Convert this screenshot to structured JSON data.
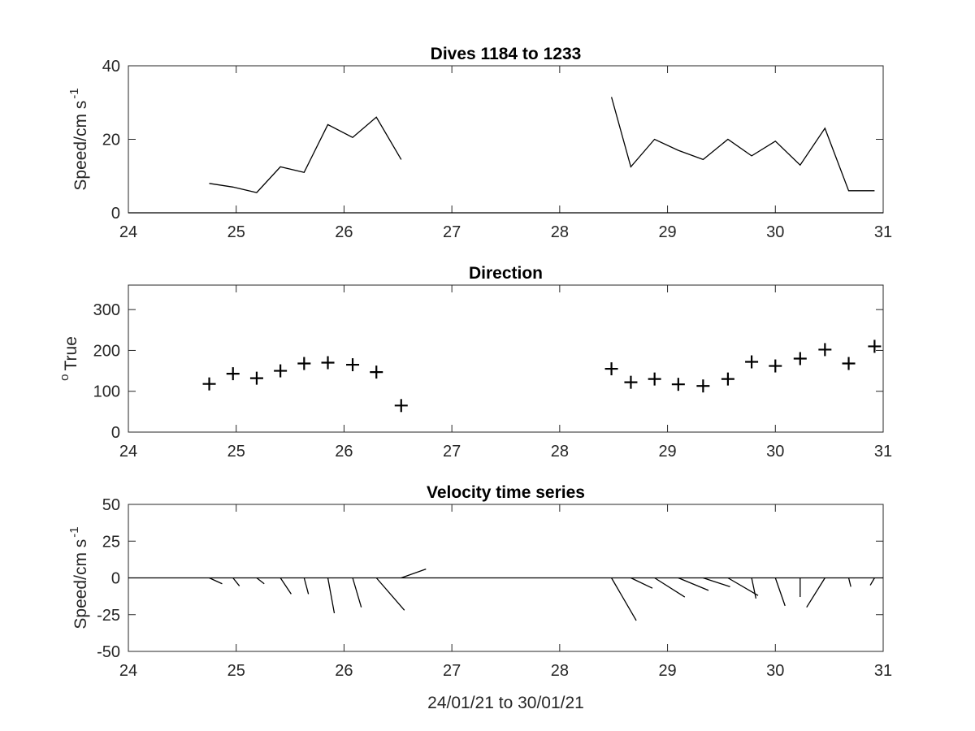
{
  "chart_data": [
    {
      "type": "line",
      "title": "Dives 1184 to 1233",
      "ylabel": "Speed/cm s",
      "ylabel_sup": "-1",
      "xlim": [
        24,
        31
      ],
      "ylim": [
        0,
        40
      ],
      "xticks": [
        24,
        25,
        26,
        27,
        28,
        29,
        30,
        31
      ],
      "yticks": [
        0,
        20,
        40
      ],
      "grid": false,
      "zero_line": true,
      "segments": [
        [
          {
            "x": 24.75,
            "y": 8
          },
          {
            "x": 24.97,
            "y": 7
          },
          {
            "x": 25.19,
            "y": 5.5
          },
          {
            "x": 25.41,
            "y": 12.5
          },
          {
            "x": 25.63,
            "y": 11
          },
          {
            "x": 25.85,
            "y": 24
          },
          {
            "x": 26.08,
            "y": 20.5
          },
          {
            "x": 26.3,
            "y": 26
          },
          {
            "x": 26.53,
            "y": 14.5
          }
        ],
        [
          {
            "x": 28.48,
            "y": 31.5
          },
          {
            "x": 28.66,
            "y": 12.5
          },
          {
            "x": 28.88,
            "y": 20
          },
          {
            "x": 29.1,
            "y": 17
          },
          {
            "x": 29.33,
            "y": 14.5
          },
          {
            "x": 29.56,
            "y": 20
          },
          {
            "x": 29.78,
            "y": 15.5
          },
          {
            "x": 30.0,
            "y": 19.5
          },
          {
            "x": 30.23,
            "y": 13
          },
          {
            "x": 30.46,
            "y": 23
          },
          {
            "x": 30.68,
            "y": 6
          },
          {
            "x": 30.92,
            "y": 6
          }
        ]
      ]
    },
    {
      "type": "scatter",
      "title": "Direction",
      "ylabel": "True",
      "ylabel_sup": "o",
      "xlim": [
        24,
        31
      ],
      "ylim": [
        0,
        360
      ],
      "xticks": [
        24,
        25,
        26,
        27,
        28,
        29,
        30,
        31
      ],
      "yticks": [
        0,
        100,
        200,
        300
      ],
      "grid": false,
      "marker": "+",
      "points": [
        {
          "x": 24.75,
          "y": 118
        },
        {
          "x": 24.97,
          "y": 143
        },
        {
          "x": 25.19,
          "y": 132
        },
        {
          "x": 25.41,
          "y": 150
        },
        {
          "x": 25.63,
          "y": 168
        },
        {
          "x": 25.85,
          "y": 170
        },
        {
          "x": 26.08,
          "y": 165
        },
        {
          "x": 26.3,
          "y": 147
        },
        {
          "x": 26.53,
          "y": 65
        },
        {
          "x": 28.48,
          "y": 155
        },
        {
          "x": 28.66,
          "y": 122
        },
        {
          "x": 28.88,
          "y": 130
        },
        {
          "x": 29.1,
          "y": 117
        },
        {
          "x": 29.33,
          "y": 113
        },
        {
          "x": 29.56,
          "y": 130
        },
        {
          "x": 29.78,
          "y": 172
        },
        {
          "x": 30.0,
          "y": 162
        },
        {
          "x": 30.23,
          "y": 180
        },
        {
          "x": 30.46,
          "y": 202
        },
        {
          "x": 30.68,
          "y": 168
        },
        {
          "x": 30.92,
          "y": 210
        }
      ]
    },
    {
      "type": "stick",
      "title": "Velocity time series",
      "ylabel": "Speed/cm s",
      "ylabel_sup": "-1",
      "xlabel": "24/01/21 to 30/01/21",
      "xlim": [
        24,
        31
      ],
      "ylim": [
        -50,
        50
      ],
      "xticks": [
        24,
        25,
        26,
        27,
        28,
        29,
        30,
        31
      ],
      "yticks": [
        -50,
        -25,
        0,
        25,
        50
      ],
      "grid": false,
      "zero_line": true,
      "sticks": [
        {
          "x": 24.75,
          "dx": 0.12,
          "dy": -4
        },
        {
          "x": 24.97,
          "dx": 0.06,
          "dy": -5.5
        },
        {
          "x": 25.19,
          "dx": 0.07,
          "dy": -4
        },
        {
          "x": 25.41,
          "dx": 0.1,
          "dy": -11
        },
        {
          "x": 25.63,
          "dx": 0.04,
          "dy": -11
        },
        {
          "x": 25.85,
          "dx": 0.06,
          "dy": -24
        },
        {
          "x": 26.08,
          "dx": 0.08,
          "dy": -20
        },
        {
          "x": 26.3,
          "dx": 0.26,
          "dy": -22
        },
        {
          "x": 26.53,
          "dx": 0.23,
          "dy": 6
        },
        {
          "x": 28.48,
          "dx": 0.23,
          "dy": -29
        },
        {
          "x": 28.66,
          "dx": 0.2,
          "dy": -7
        },
        {
          "x": 28.88,
          "dx": 0.28,
          "dy": -13
        },
        {
          "x": 29.1,
          "dx": 0.28,
          "dy": -8.5
        },
        {
          "x": 29.33,
          "dx": 0.25,
          "dy": -6
        },
        {
          "x": 29.56,
          "dx": 0.28,
          "dy": -12
        },
        {
          "x": 29.78,
          "dx": 0.04,
          "dy": -14
        },
        {
          "x": 30.0,
          "dx": 0.09,
          "dy": -19
        },
        {
          "x": 30.23,
          "dx": 0.0,
          "dy": -13
        },
        {
          "x": 30.46,
          "dx": -0.17,
          "dy": -20
        },
        {
          "x": 30.68,
          "dx": 0.02,
          "dy": -6
        },
        {
          "x": 30.92,
          "dx": -0.04,
          "dy": -5
        }
      ]
    }
  ]
}
